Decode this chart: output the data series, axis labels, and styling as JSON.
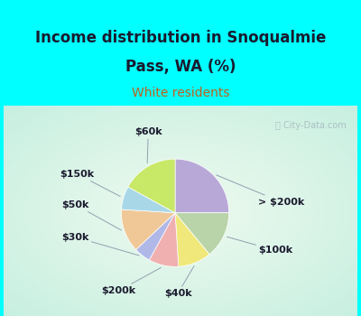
{
  "title_line1": "Income distribution in Snoqualmie",
  "title_line2": "Pass, WA (%)",
  "subtitle": "White residents",
  "labels": [
    "> $200k",
    "$100k",
    "$40k",
    "$200k",
    "$30k",
    "$50k",
    "$150k",
    "$60k"
  ],
  "values": [
    25,
    14,
    10,
    9,
    5,
    13,
    7,
    17
  ],
  "colors": [
    "#b8a8d8",
    "#b8d4a8",
    "#f0e87a",
    "#f0b0b0",
    "#b0b8e8",
    "#f0c898",
    "#a8d8e8",
    "#c8e868"
  ],
  "start_angle": 90,
  "background_cyan": "#00ffff",
  "background_chart": "#e0f5e8",
  "title_color": "#1a1a2e",
  "subtitle_color": "#c06020",
  "label_color": "#1a1a2e",
  "watermark": "City-Data.com",
  "title_fontsize": 12,
  "subtitle_fontsize": 10,
  "label_fontsize": 8
}
